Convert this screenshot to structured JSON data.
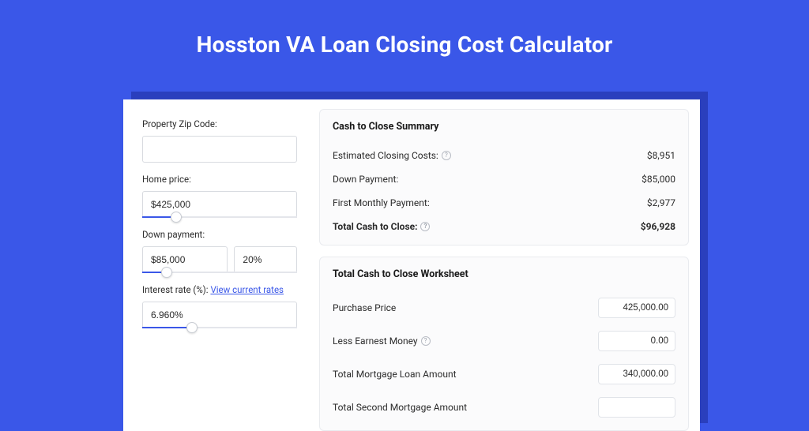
{
  "colors": {
    "page_bg": "#3a57e8",
    "card_bg": "#ffffff",
    "shadow_bg": "#2a3fbd",
    "panel_bg": "#fbfbfc",
    "panel_border": "#e9ebef",
    "input_border": "#d8dbe0",
    "text": "#2b2b2b",
    "title_text": "#ffffff",
    "link": "#3a57e8",
    "slider_track": "#e4e6eb",
    "slider_fill": "#3a57e8",
    "help_border": "#b8bcc4"
  },
  "title": "Hosston VA Loan Closing Cost Calculator",
  "form": {
    "zip": {
      "label": "Property Zip Code:",
      "value": ""
    },
    "home_price": {
      "label": "Home price:",
      "value": "$425,000",
      "slider_percent": 22
    },
    "down_payment": {
      "label": "Down payment:",
      "amount": "$85,000",
      "percent": "20%",
      "slider_percent": 16
    },
    "interest_rate": {
      "label": "Interest rate (%):",
      "link_text": "View current rates",
      "value": "6.960%",
      "slider_percent": 32
    }
  },
  "summary": {
    "title": "Cash to Close Summary",
    "rows": [
      {
        "label": "Estimated Closing Costs:",
        "help": true,
        "value": "$8,951",
        "bold": false
      },
      {
        "label": "Down Payment:",
        "help": false,
        "value": "$85,000",
        "bold": false
      },
      {
        "label": "First Monthly Payment:",
        "help": false,
        "value": "$2,977",
        "bold": false
      },
      {
        "label": "Total Cash to Close:",
        "help": true,
        "value": "$96,928",
        "bold": true
      }
    ]
  },
  "worksheet": {
    "title": "Total Cash to Close Worksheet",
    "rows": [
      {
        "label": "Purchase Price",
        "help": false,
        "value": "425,000.00"
      },
      {
        "label": "Less Earnest Money",
        "help": true,
        "value": "0.00"
      },
      {
        "label": "Total Mortgage Loan Amount",
        "help": false,
        "value": "340,000.00"
      },
      {
        "label": "Total Second Mortgage Amount",
        "help": false,
        "value": ""
      }
    ]
  }
}
